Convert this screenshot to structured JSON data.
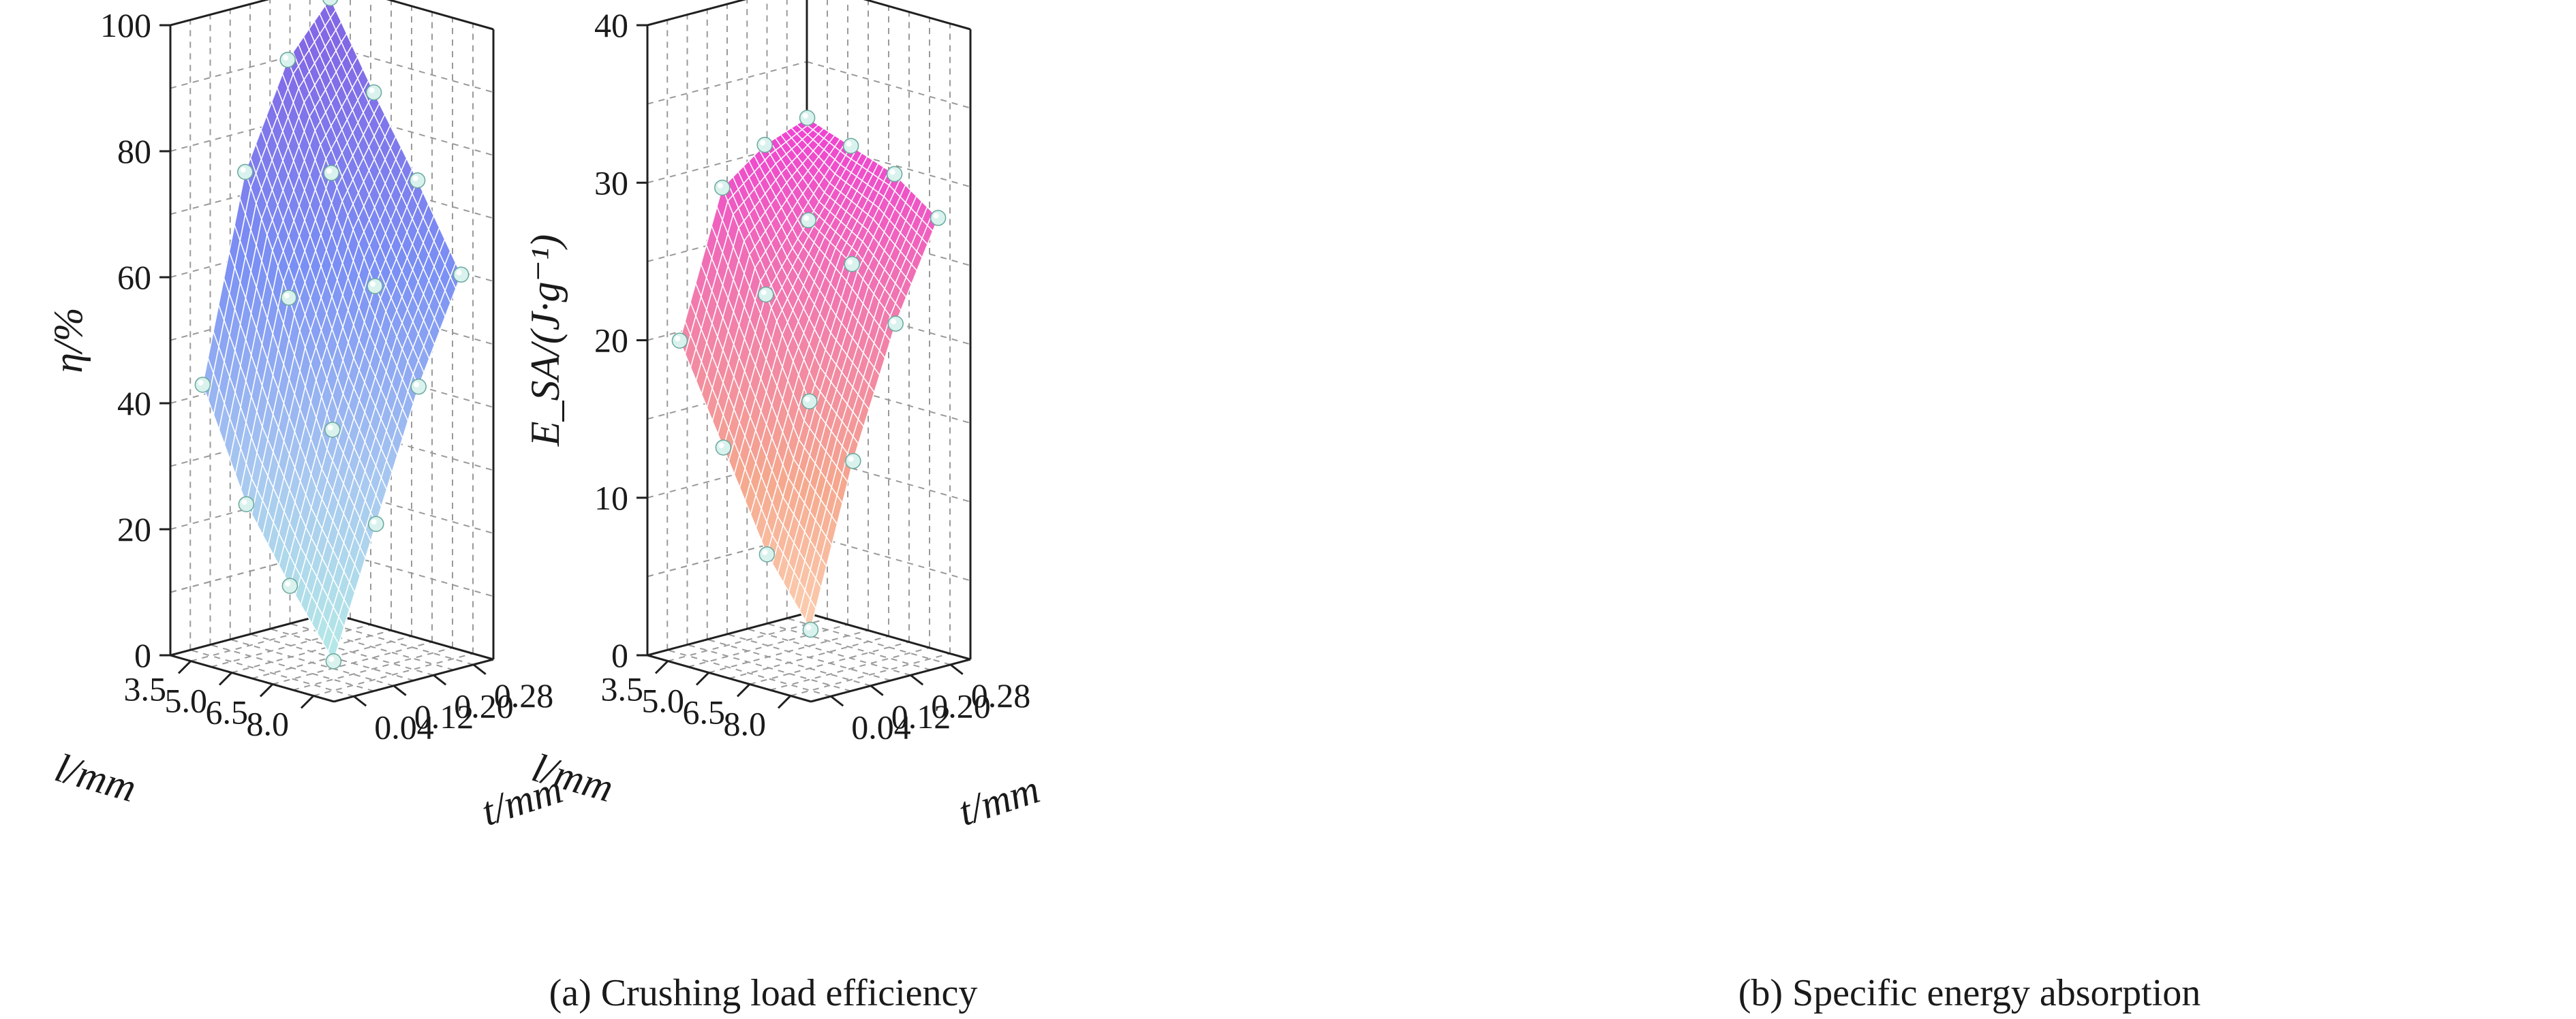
{
  "chart_data": [
    {
      "type": "surface3d",
      "caption": "(a) Crushing load efficiency",
      "xlabel": "l/mm",
      "ylabel": "t/mm",
      "zlabel": "η/%",
      "x_ticks": [
        "3.5",
        "5.0",
        "6.5",
        "8.0"
      ],
      "y_ticks": [
        "0.04",
        "0.12",
        "0.20",
        "0.28"
      ],
      "z_ticks": [
        "0",
        "20",
        "40",
        "60",
        "80",
        "100"
      ],
      "x": [
        3.5,
        5.0,
        6.5,
        8.0
      ],
      "y": [
        0.04,
        0.12,
        0.2,
        0.28
      ],
      "zlim": [
        0,
        100
      ],
      "z": [
        [
          43,
          75,
          91,
          99
        ],
        [
          26,
          57,
          75,
          86
        ],
        [
          15,
          38,
          59,
          74
        ],
        [
          5,
          25,
          45,
          61
        ]
      ],
      "colors": [
        "#b8f0e4",
        "#a8c8f0",
        "#7a8ff4",
        "#8268e6"
      ]
    },
    {
      "type": "surface3d",
      "caption": "(b) Specific energy absorption",
      "xlabel": "l/mm",
      "ylabel": "t/mm",
      "zlabel": "E_SA/(J·g⁻¹)",
      "x_ticks": [
        "3.5",
        "5.0",
        "6.5",
        "8.0"
      ],
      "y_ticks": [
        "0.04",
        "0.12",
        "0.20",
        "0.28"
      ],
      "z_ticks": [
        "0",
        "10",
        "20",
        "30",
        "40"
      ],
      "x": [
        3.5,
        5.0,
        6.5,
        8.0
      ],
      "y": [
        0.04,
        0.12,
        0.2,
        0.28
      ],
      "zlim": [
        0,
        40
      ],
      "z": [
        [
          20,
          29,
          31,
          32
        ],
        [
          14,
          23,
          27,
          31
        ],
        [
          8,
          17,
          25,
          30
        ],
        [
          4,
          14,
          22,
          28
        ]
      ],
      "colors": [
        "#ffe4c4",
        "#f5a88e",
        "#f06fb4",
        "#ee22e8"
      ]
    }
  ]
}
